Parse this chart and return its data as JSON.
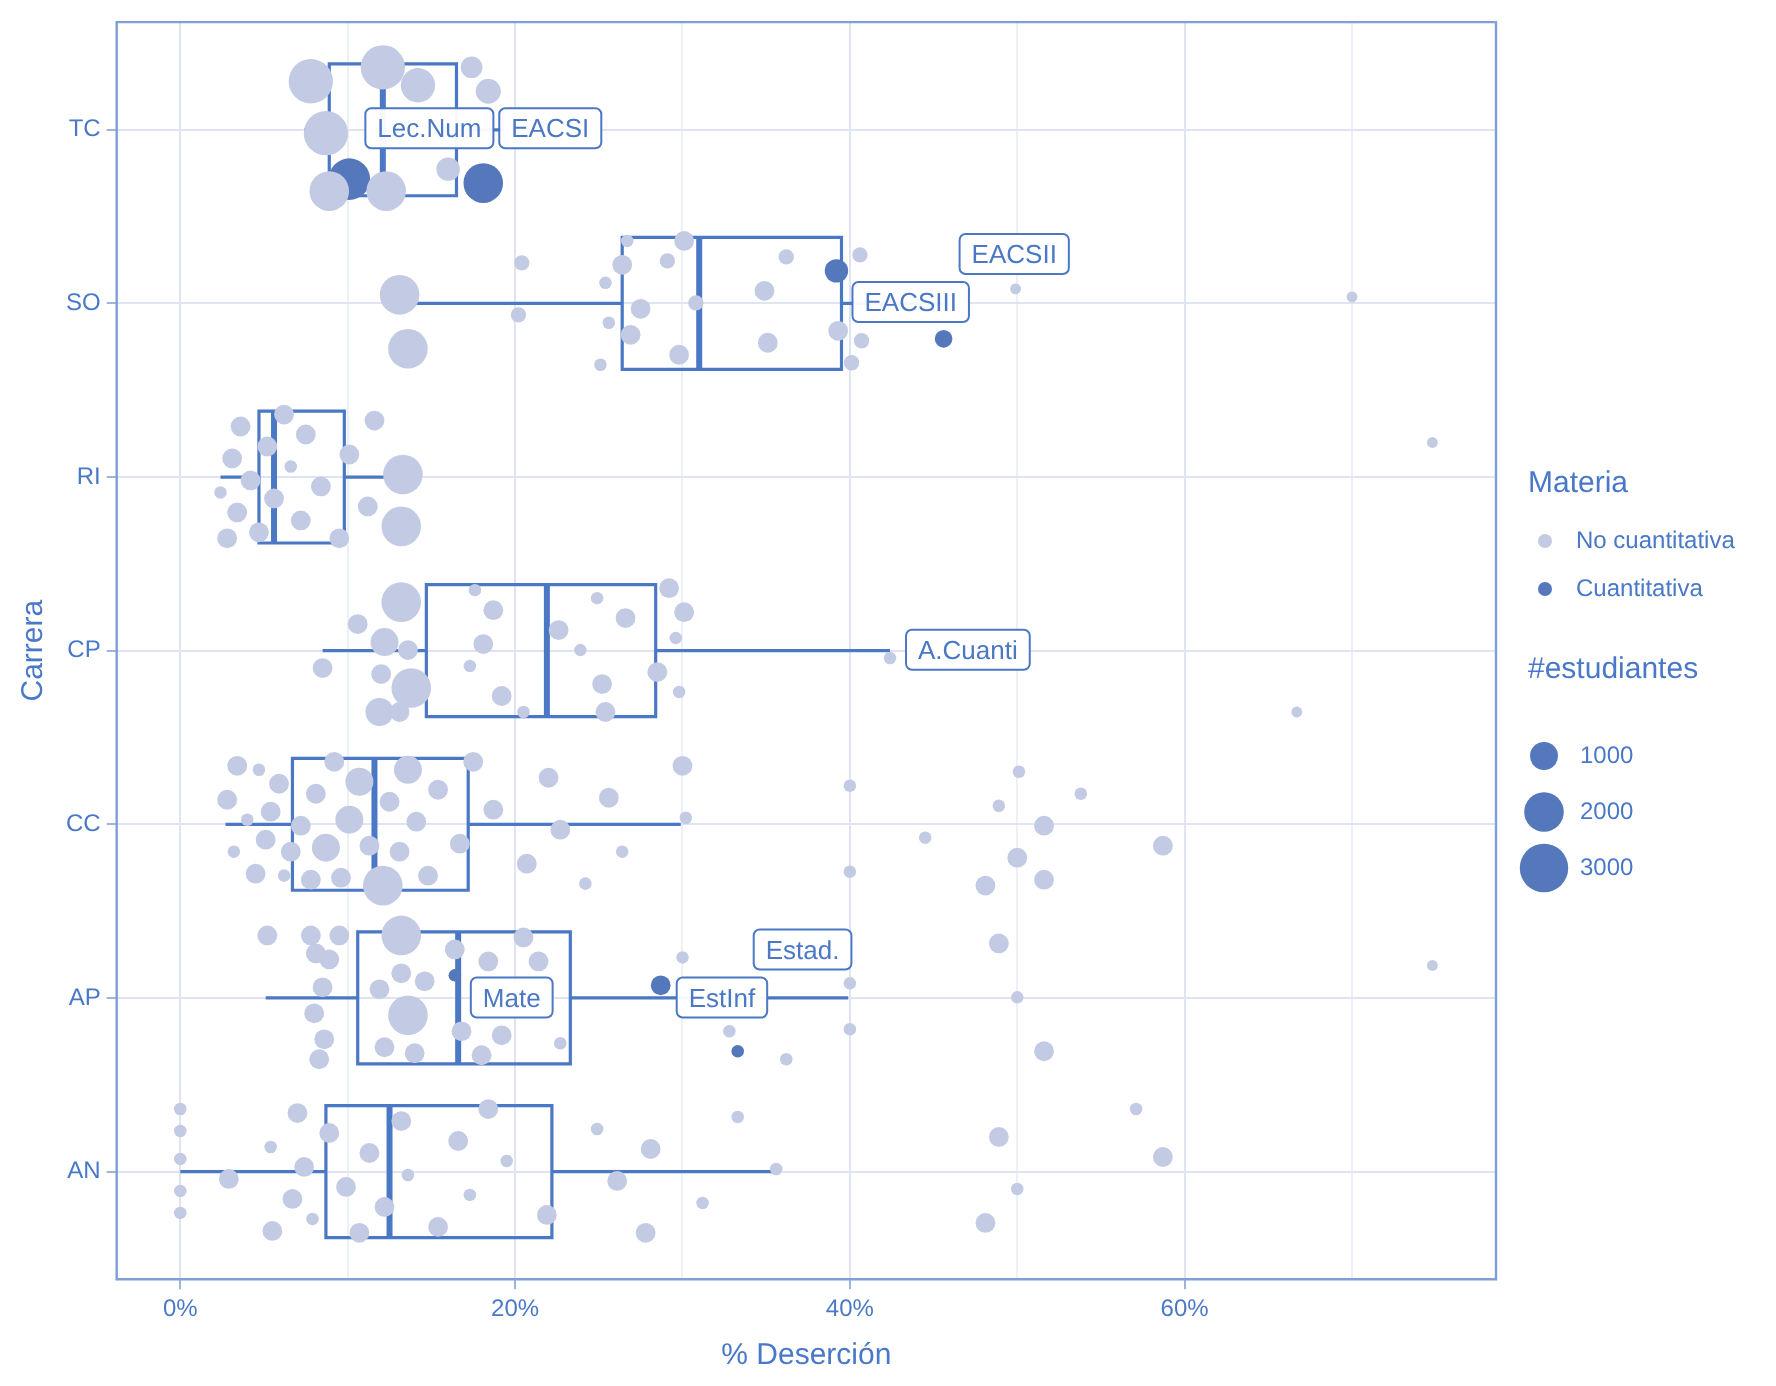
{
  "chart_data": {
    "type": "box",
    "orientation": "horizontal",
    "xlabel": "% Deserción",
    "ylabel": "Carrera",
    "color": "#4a78c4",
    "categories": [
      "TC",
      "SO",
      "RI",
      "CP",
      "CC",
      "AP",
      "AN"
    ],
    "boxes": [
      {
        "low": 7.4,
        "q1": 8.9,
        "median": 12.1,
        "q3": 16.5,
        "high": 19.3
      },
      {
        "low": 13.3,
        "q1": 26.4,
        "median": 31.0,
        "q3": 39.5,
        "high": 45.7
      },
      {
        "low": 2.4,
        "q1": 4.7,
        "median": 5.6,
        "q3": 9.8,
        "high": 13.7
      },
      {
        "low": 8.5,
        "q1": 14.7,
        "median": 21.9,
        "q3": 28.4,
        "high": 42.4
      },
      {
        "low": 2.7,
        "q1": 6.7,
        "median": 11.6,
        "q3": 17.2,
        "high": 29.9
      },
      {
        "low": 5.1,
        "q1": 10.6,
        "median": 16.6,
        "q3": 23.3,
        "high": 39.9
      },
      {
        "low": 0,
        "q1": 8.7,
        "median": 12.5,
        "q3": 22.2,
        "high": 35.7
      }
    ],
    "series": [
      {
        "name": "No cuantitativa",
        "type": "bubble",
        "color": "#c3cae3",
        "x": [
          "TC",
          "TC",
          "TC",
          "TC",
          "TC",
          "TC",
          "TC",
          "TC",
          "TC",
          "SO",
          "SO",
          "SO",
          "SO",
          "SO",
          "SO",
          "SO",
          "SO",
          "SO",
          "SO",
          "SO",
          "SO",
          "SO",
          "SO",
          "SO",
          "SO",
          "SO",
          "SO",
          "SO",
          "SO",
          "SO",
          "SO",
          "SO",
          "SO",
          "RI",
          "RI",
          "RI",
          "RI",
          "RI",
          "RI",
          "RI",
          "RI",
          "RI",
          "RI",
          "RI",
          "RI",
          "RI",
          "RI",
          "RI",
          "RI",
          "RI",
          "RI",
          "RI",
          "RI",
          "RI",
          "CP",
          "CP",
          "CP",
          "CP",
          "CP",
          "CP",
          "CP",
          "CP",
          "CP",
          "CP",
          "CP",
          "CP",
          "CP",
          "CP",
          "CP",
          "CP",
          "CP",
          "CP",
          "CP",
          "CP",
          "CP",
          "CP",
          "CP",
          "CP",
          "CP",
          "CP",
          "CP",
          "CP",
          "CC",
          "CC",
          "CC",
          "CC",
          "CC",
          "CC",
          "CC",
          "CC",
          "CC",
          "CC",
          "CC",
          "CC",
          "CC",
          "CC",
          "CC",
          "CC",
          "CC",
          "CC",
          "CC",
          "CC",
          "CC",
          "CC",
          "CC",
          "CC",
          "CC",
          "CC",
          "CC",
          "CC",
          "CC",
          "CC",
          "CC",
          "CC",
          "CC",
          "CC",
          "CC",
          "CC",
          "CC",
          "CC",
          "CC",
          "CC",
          "CC",
          "CC",
          "CC",
          "CC",
          "CC",
          "CC",
          "CC",
          "CC",
          "CC",
          "AP",
          "AP",
          "AP",
          "AP",
          "AP",
          "AP",
          "AP",
          "AP",
          "AP",
          "AP",
          "AP",
          "AP",
          "AP",
          "AP",
          "AP",
          "AP",
          "AP",
          "AP",
          "AP",
          "AP",
          "AP",
          "AP",
          "AP",
          "AP",
          "AP",
          "AP",
          "AP",
          "AP",
          "AP",
          "AP",
          "AP",
          "AP",
          "AP",
          "AN",
          "AN",
          "AN",
          "AN",
          "AN",
          "AN",
          "AN",
          "AN",
          "AN",
          "AN",
          "AN",
          "AN",
          "AN",
          "AN",
          "AN",
          "AN",
          "AN",
          "AN",
          "AN",
          "AN",
          "AN",
          "AN",
          "AN",
          "AN",
          "AN",
          "AN",
          "AN",
          "AN",
          "AN",
          "AN",
          "AN",
          "AN",
          "AN",
          "AN",
          "AN",
          "AN",
          "AN"
        ],
        "values": [
          12.1,
          17.4,
          8.9,
          7.8,
          8.7,
          12.3,
          18.4,
          16.0,
          14.2,
          13.1,
          13.6,
          20.4,
          20.2,
          25.1,
          25.4,
          26.9,
          29.1,
          30.8,
          29.8,
          26.7,
          27.5,
          30.1,
          34.9,
          35.1,
          36.2,
          39.3,
          40.1,
          40.6,
          40.7,
          49.9,
          70.0,
          25.6,
          26.4,
          2.4,
          2.8,
          3.1,
          3.4,
          3.6,
          4.2,
          4.7,
          5.2,
          5.6,
          6.2,
          6.6,
          7.2,
          7.5,
          8.4,
          9.5,
          10.1,
          11.2,
          11.6,
          13.3,
          13.2,
          74.8,
          8.5,
          12.2,
          11.9,
          13.8,
          13.2,
          13.6,
          12.0,
          13.1,
          10.6,
          17.6,
          18.1,
          19.2,
          18.7,
          17.3,
          20.5,
          22.6,
          25.2,
          24.9,
          23.9,
          25.4,
          26.6,
          28.5,
          29.2,
          29.6,
          29.8,
          30.1,
          42.4,
          66.7,
          2.8,
          3.2,
          3.4,
          4.0,
          4.5,
          4.7,
          5.1,
          5.4,
          5.9,
          6.2,
          6.6,
          7.2,
          7.8,
          8.1,
          8.7,
          9.2,
          9.6,
          10.1,
          10.7,
          11.3,
          12.1,
          12.5,
          13.1,
          13.6,
          14.1,
          14.8,
          15.4,
          16.7,
          17.5,
          18.7,
          20.7,
          22.0,
          22.7,
          24.2,
          25.6,
          26.4,
          30.0,
          30.2,
          40.0,
          40.0,
          44.5,
          48.1,
          48.9,
          50.0,
          50.1,
          51.6,
          51.6,
          53.8,
          58.7,
          5.2,
          8.5,
          8.6,
          8.1,
          8.0,
          8.3,
          7.8,
          8.9,
          9.5,
          11.9,
          12.2,
          13.2,
          13.6,
          13.2,
          14.0,
          14.6,
          16.4,
          16.8,
          18.0,
          18.4,
          19.2,
          20.5,
          21.4,
          22.7,
          30.0,
          32.8,
          36.2,
          40.0,
          40.0,
          48.9,
          50.0,
          51.6,
          74.8,
          0,
          0,
          0,
          0,
          0,
          2.9,
          5.5,
          5.4,
          6.7,
          7.0,
          7.4,
          7.9,
          8.9,
          9.9,
          10.7,
          11.3,
          12.2,
          13.2,
          13.6,
          15.4,
          16.6,
          17.3,
          18.4,
          19.5,
          21.9,
          24.9,
          26.1,
          27.8,
          28.1,
          31.2,
          33.3,
          35.6,
          48.1,
          48.9,
          50.0,
          57.1,
          58.7
        ],
        "sizes": [
          2500,
          600,
          2000,
          2500,
          2500,
          2000,
          800,
          700,
          1500,
          2000,
          2000,
          300,
          300,
          200,
          200,
          500,
          300,
          300,
          500,
          200,
          500,
          500,
          500,
          500,
          300,
          500,
          300,
          300,
          300,
          150,
          150,
          200,
          500,
          200,
          500,
          500,
          500,
          500,
          500,
          500,
          500,
          500,
          500,
          200,
          500,
          500,
          500,
          500,
          500,
          500,
          500,
          2000,
          2000,
          150,
          500,
          1000,
          1000,
          2000,
          2000,
          500,
          500,
          500,
          500,
          200,
          500,
          500,
          500,
          200,
          200,
          500,
          500,
          200,
          200,
          500,
          500,
          500,
          500,
          200,
          200,
          500,
          200,
          150,
          500,
          200,
          500,
          200,
          500,
          200,
          500,
          500,
          500,
          200,
          500,
          500,
          500,
          500,
          1000,
          500,
          500,
          1000,
          1000,
          500,
          2000,
          500,
          500,
          1000,
          500,
          500,
          500,
          500,
          500,
          500,
          500,
          500,
          500,
          200,
          500,
          200,
          500,
          200,
          200,
          200,
          200,
          500,
          200,
          500,
          200,
          500,
          500,
          200,
          500,
          500,
          500,
          500,
          500,
          500,
          500,
          500,
          500,
          500,
          500,
          500,
          500,
          2000,
          2000,
          500,
          500,
          500,
          500,
          500,
          500,
          500,
          500,
          500,
          200,
          200,
          200,
          200,
          200,
          200,
          500,
          200,
          500,
          150,
          200,
          200,
          200,
          200,
          200,
          500,
          500,
          200,
          500,
          500,
          500,
          200,
          500,
          500,
          500,
          500,
          500,
          500,
          200,
          500,
          500,
          200,
          500,
          200,
          500,
          200,
          500,
          500,
          500,
          200,
          200,
          200,
          500,
          500,
          200,
          200,
          500
        ]
      },
      {
        "name": "Cuantitativa",
        "type": "bubble",
        "color": "#5577bb",
        "x": [
          "TC",
          "TC",
          "SO",
          "SO",
          "AP",
          "AP",
          "AP"
        ],
        "values": [
          10.1,
          18.1,
          39.2,
          45.6,
          16.4,
          28.7,
          33.3
        ],
        "sizes": [
          2200,
          2000,
          700,
          400,
          200,
          500,
          200
        ]
      }
    ],
    "size_legend": [
      1000,
      2000,
      3000
    ],
    "legend_title": "Materia",
    "legend": "right",
    "grid": true,
    "xlim": [
      -3.8,
      78.6
    ],
    "xticks": [
      {
        "value": 0,
        "label": "0%"
      },
      {
        "value": 10,
        "label": null
      },
      {
        "value": 20,
        "label": "20%"
      },
      {
        "value": 30,
        "label": null
      },
      {
        "value": 40,
        "label": "40%"
      },
      {
        "value": 50,
        "label": null
      },
      {
        "value": 60,
        "label": "60%"
      },
      {
        "value": 70,
        "label": null
      }
    ],
    "annotations": [
      "#estudiantes",
      {
        "text": "Lec.Num",
        "x": 10.1,
        "y": "TC"
      },
      {
        "text": "EACSI",
        "x": 18.1,
        "y": "TC"
      },
      {
        "text": "EACSIII",
        "x": 39.2,
        "y": "SO"
      },
      {
        "text": "EACSII",
        "x": 45.6,
        "y": "SO"
      },
      {
        "text": "A.Cuanti",
        "x": 42.4,
        "y": "CP"
      },
      {
        "text": "Mate",
        "x": 16.4,
        "y": "AP"
      },
      {
        "text": "EstInf",
        "x": 28.7,
        "y": "AP"
      },
      {
        "text": "Estad.",
        "x": 33.3,
        "y": "AP"
      }
    ]
  }
}
